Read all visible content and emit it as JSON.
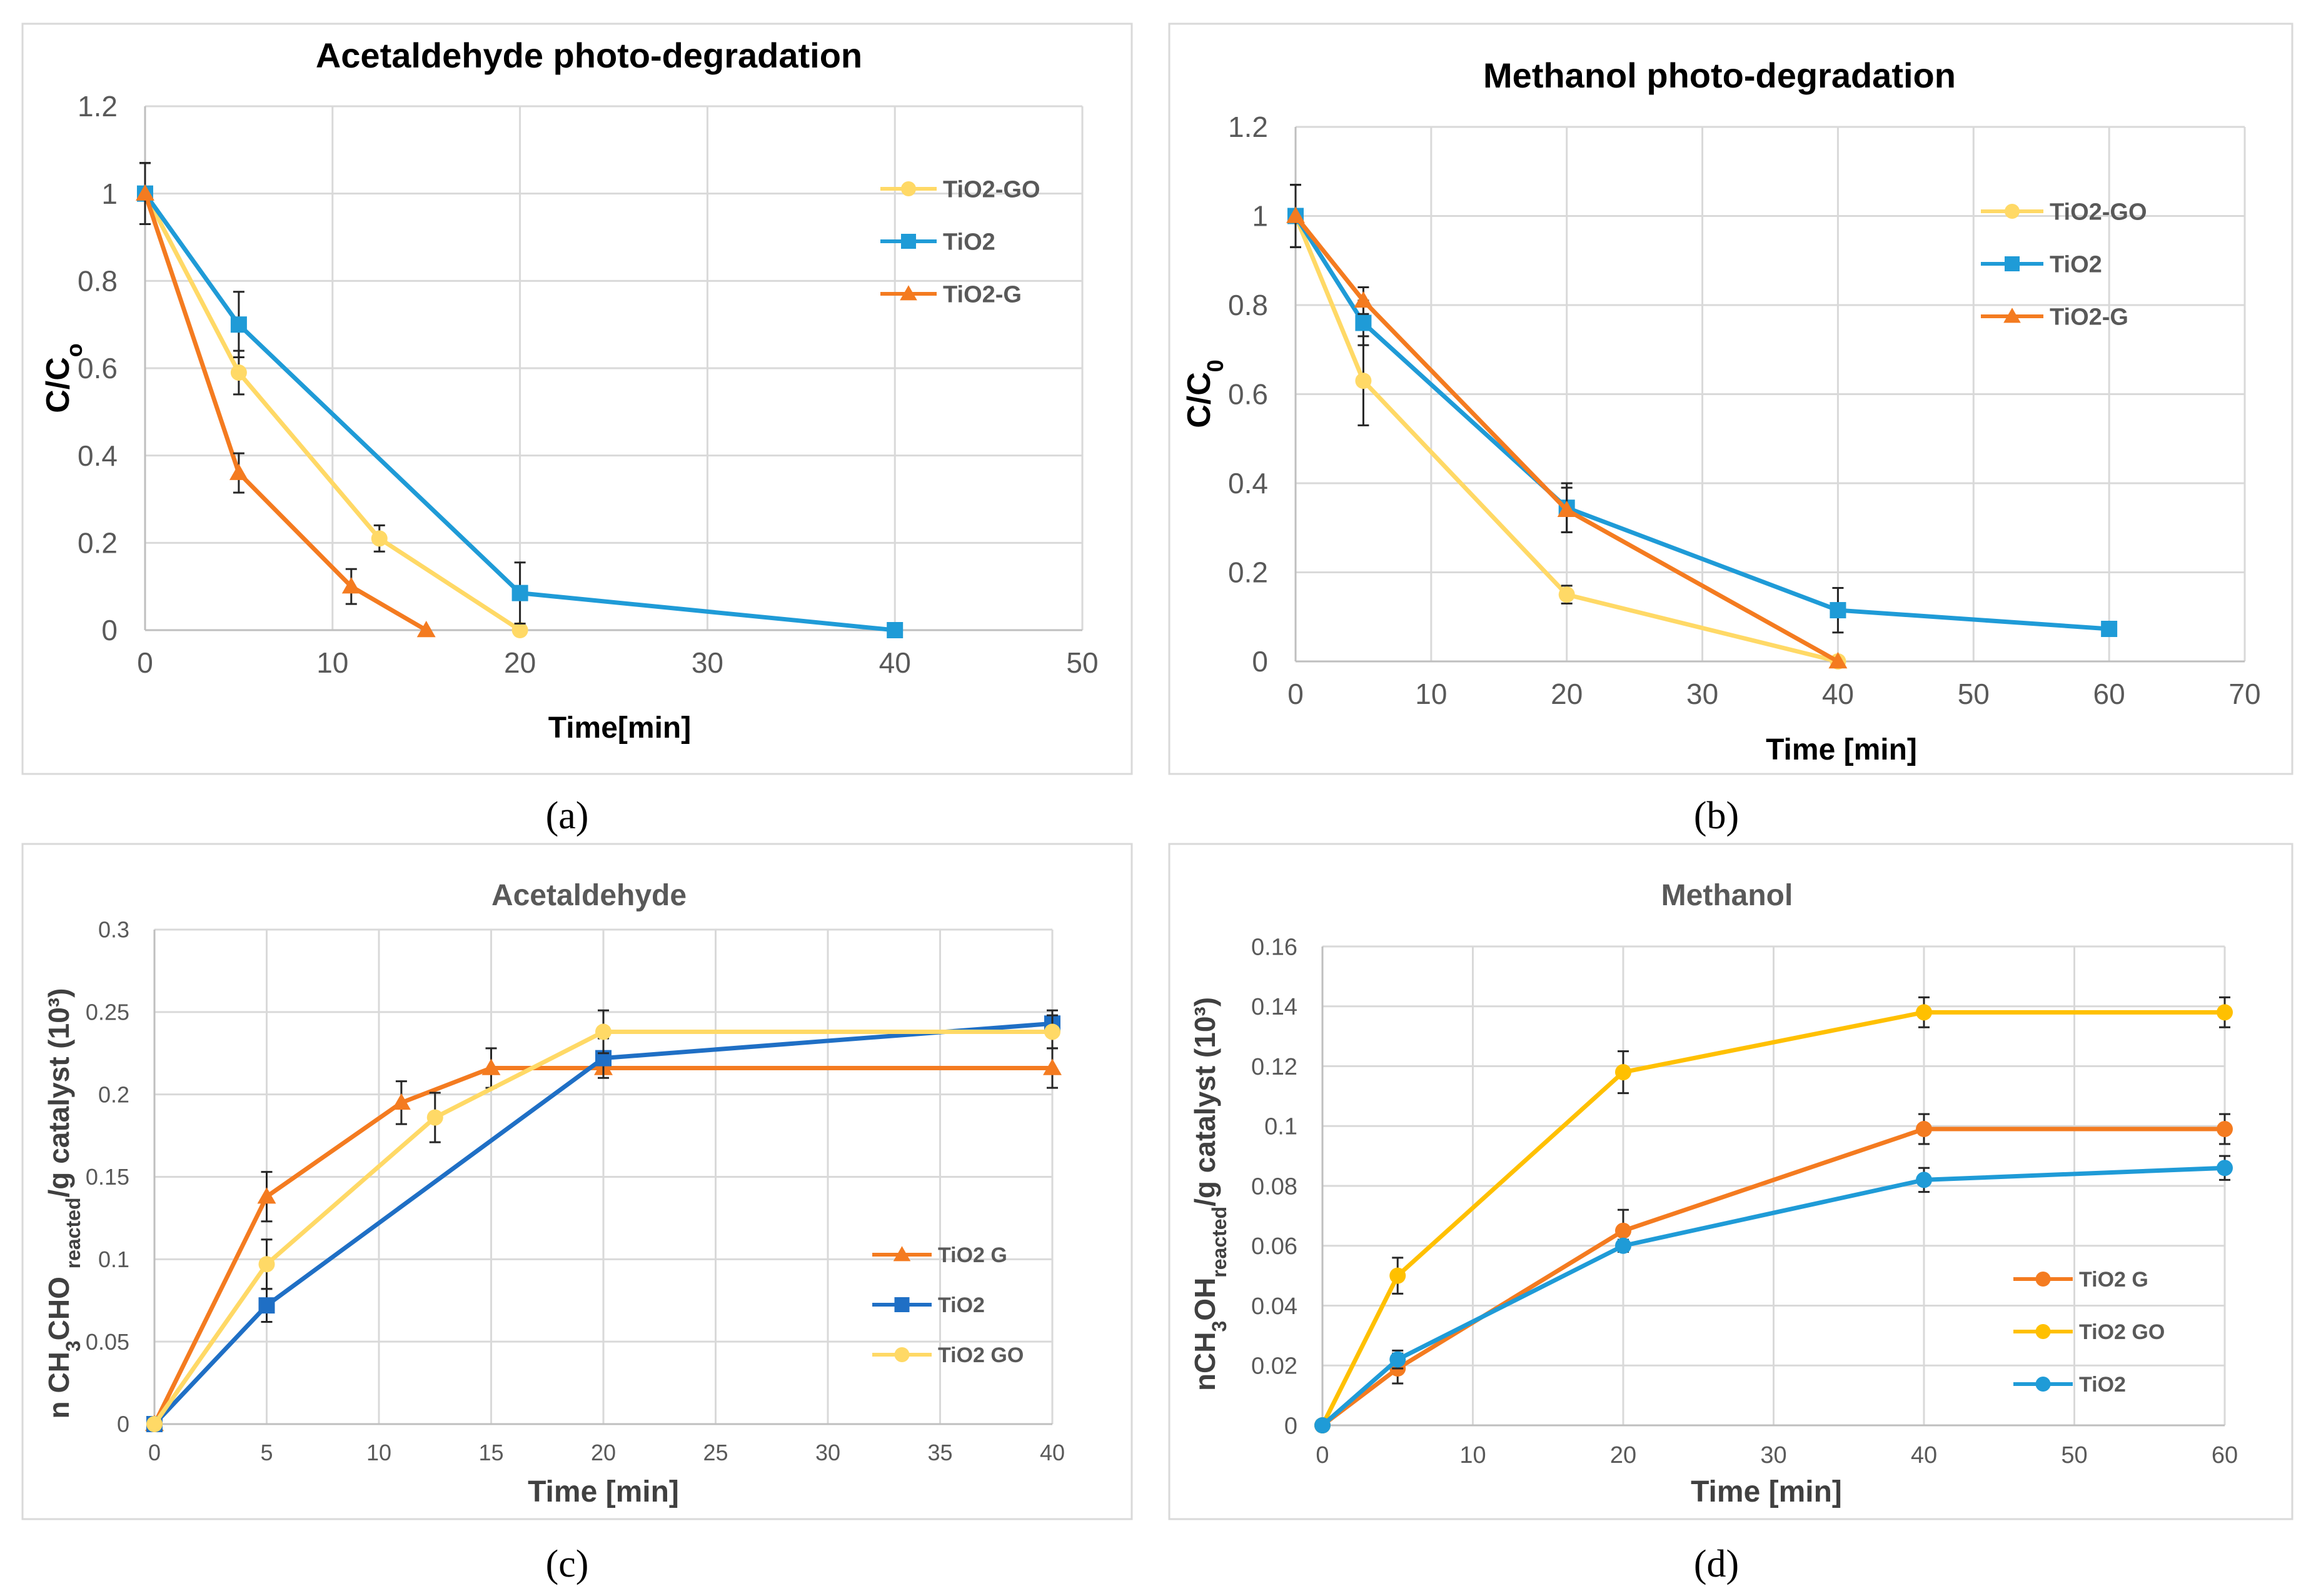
{
  "figure": {
    "captions": [
      "(a)",
      "(b)",
      "(c)",
      "(d)"
    ]
  },
  "chart_data": [
    {
      "id": "a",
      "type": "line",
      "title": "Acetaldehyde photo-degradation",
      "xlabel": "Time[min]",
      "ylabel": "C/Co",
      "xlim": [
        0,
        50
      ],
      "ylim": [
        0,
        1.2
      ],
      "xticks": [
        "0",
        "10",
        "20",
        "30",
        "40",
        "50"
      ],
      "yticks": [
        "0",
        "0.2",
        "0.4",
        "0.6",
        "0.8",
        "1",
        "1.2"
      ],
      "grid": true,
      "legend": "top-right",
      "series": [
        {
          "name": "TiO2-GO",
          "color": "#ffd966",
          "marker": "circle",
          "x": [
            0,
            5,
            12.5,
            20
          ],
          "y": [
            1,
            0.59,
            0.21,
            0
          ],
          "err": [
            0.07,
            0.05,
            0.03,
            0
          ]
        },
        {
          "name": "TiO2",
          "color": "#1f9bd7",
          "marker": "square",
          "x": [
            0,
            5,
            20,
            40
          ],
          "y": [
            1,
            0.7,
            0.085,
            0
          ],
          "err": [
            0.07,
            0.075,
            0.07,
            0
          ]
        },
        {
          "name": "TiO2-G",
          "color": "#f47b20",
          "marker": "triangle",
          "x": [
            0,
            5,
            11,
            15
          ],
          "y": [
            1,
            0.36,
            0.1,
            0
          ],
          "err": [
            0.07,
            0.045,
            0.04,
            0
          ]
        }
      ]
    },
    {
      "id": "b",
      "type": "line",
      "title": "Methanol photo-degradation",
      "xlabel": "Time [min]",
      "ylabel": "C/C0",
      "xlim": [
        0,
        70
      ],
      "ylim": [
        0,
        1.2
      ],
      "xticks": [
        "0",
        "10",
        "20",
        "30",
        "40",
        "50",
        "60",
        "70"
      ],
      "yticks": [
        "0",
        "0.2",
        "0.4",
        "0.6",
        "0.8",
        "1",
        "1.2"
      ],
      "grid": true,
      "legend": "top-right",
      "series": [
        {
          "name": "TiO2-GO",
          "color": "#ffd966",
          "marker": "circle",
          "x": [
            0,
            5,
            20,
            40
          ],
          "y": [
            1,
            0.63,
            0.15,
            0
          ],
          "err": [
            0.07,
            0.1,
            0.02,
            0
          ]
        },
        {
          "name": "TiO2",
          "color": "#1f9bd7",
          "marker": "square",
          "x": [
            0,
            5,
            20,
            40,
            60
          ],
          "y": [
            1,
            0.76,
            0.345,
            0.115,
            0.073
          ],
          "err": [
            0.07,
            0.05,
            0.055,
            0.05,
            0.015
          ]
        },
        {
          "name": "TiO2-G",
          "color": "#f47b20",
          "marker": "triangle",
          "x": [
            0,
            5,
            20,
            40
          ],
          "y": [
            1,
            0.81,
            0.34,
            0
          ],
          "err": [
            0.07,
            0.03,
            0.05,
            0
          ]
        }
      ]
    },
    {
      "id": "c",
      "type": "line",
      "title": "Acetaldehyde",
      "ylabel": "n CH3CHO reacted/g catalyst (10³)",
      "xlabel": "Time [min]",
      "xlim": [
        0,
        40
      ],
      "ylim": [
        0,
        0.3
      ],
      "xticks": [
        "0",
        "5",
        "10",
        "15",
        "20",
        "25",
        "30",
        "35",
        "40"
      ],
      "yticks": [
        "0",
        "0.05",
        "0.1",
        "0.15",
        "0.2",
        "0.25",
        "0.3"
      ],
      "grid": true,
      "legend": "bottom-right",
      "series": [
        {
          "name": "TiO2 G",
          "color": "#f47b20",
          "marker": "triangle",
          "x": [
            0,
            5,
            11,
            15,
            20,
            40
          ],
          "y": [
            0,
            0.138,
            0.195,
            0.216,
            0.216,
            0.216
          ],
          "err": [
            0,
            0.015,
            0.013,
            0.012,
            0,
            0.012
          ]
        },
        {
          "name": "TiO2",
          "color": "#1f6fc5",
          "marker": "square",
          "x": [
            0,
            5,
            20,
            40
          ],
          "y": [
            0,
            0.072,
            0.222,
            0.243
          ],
          "err": [
            0,
            0.01,
            0.012,
            0.008
          ]
        },
        {
          "name": "TiO2 GO",
          "color": "#ffd966",
          "marker": "circle",
          "x": [
            0,
            5,
            12.5,
            20,
            40
          ],
          "y": [
            0,
            0.097,
            0.186,
            0.238,
            0.238
          ],
          "err": [
            0,
            0.015,
            0.015,
            0.013,
            0.01
          ]
        }
      ]
    },
    {
      "id": "d",
      "type": "line",
      "title": "Methanol",
      "ylabel": "nCH3OH reacted/g catalyst (10³)",
      "xlabel": "Time [min]",
      "xlim": [
        0,
        60
      ],
      "ylim": [
        0,
        0.16
      ],
      "xticks": [
        "0",
        "10",
        "20",
        "30",
        "40",
        "50",
        "60"
      ],
      "yticks": [
        "0",
        "0.02",
        "0.04",
        "0.06",
        "0.08",
        "0.1",
        "0.12",
        "0.14",
        "0.16"
      ],
      "grid": true,
      "legend": "bottom-right",
      "series": [
        {
          "name": "TiO2 G",
          "color": "#f47b20",
          "marker": "circle",
          "x": [
            0,
            5,
            20,
            40,
            60
          ],
          "y": [
            0,
            0.019,
            0.065,
            0.099,
            0.099
          ],
          "err": [
            0,
            0.005,
            0.007,
            0.005,
            0.005
          ]
        },
        {
          "name": "TiO2 GO",
          "color": "#ffc000",
          "marker": "circle",
          "x": [
            0,
            5,
            20,
            40,
            60
          ],
          "y": [
            0,
            0.05,
            0.118,
            0.138,
            0.138
          ],
          "err": [
            0,
            0.006,
            0.007,
            0.005,
            0.005
          ]
        },
        {
          "name": "TiO2",
          "color": "#1f9bd7",
          "marker": "circle",
          "x": [
            0,
            5,
            20,
            40,
            60
          ],
          "y": [
            0,
            0.022,
            0.06,
            0.082,
            0.086
          ],
          "err": [
            0,
            0.003,
            0.002,
            0.004,
            0.004
          ]
        }
      ]
    }
  ]
}
